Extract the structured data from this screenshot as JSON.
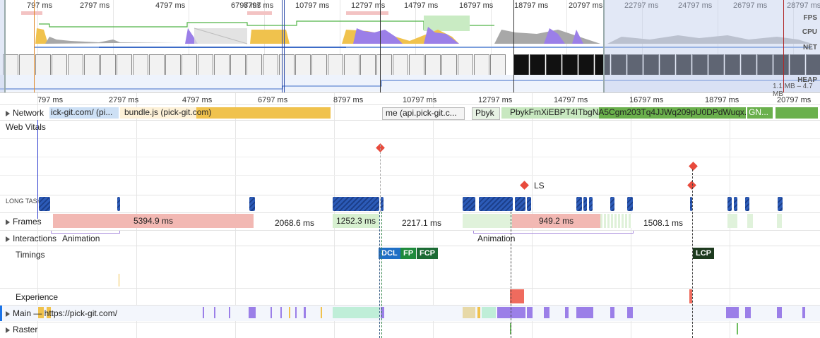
{
  "overview": {
    "ticks": [
      "797 ms",
      "2797 ms",
      "4797 ms",
      "6797 ms",
      "8797 ms",
      "10797 ms",
      "12797 ms",
      "14797 ms",
      "16797 ms",
      "18797 ms",
      "20797 ms",
      "22797 ms",
      "24797 ms",
      "26797 ms",
      "28797 ms"
    ],
    "side_labels": {
      "fps": "FPS",
      "cpu": "CPU",
      "net": "NET",
      "heap": "HEAP"
    },
    "heap_range": "1.1 MB – 4.7 MB"
  },
  "main_ticks": [
    "797 ms",
    "2797 ms",
    "4797 ms",
    "6797 ms",
    "8797 ms",
    "10797 ms",
    "12797 ms",
    "14797 ms",
    "16797 ms",
    "18797 ms",
    "20797 ms"
  ],
  "network": {
    "label": "Network",
    "requests": [
      "ick-git.com/ (pi...",
      "bundle.js (pick-git.com)",
      "me (api.pick-git.c...",
      "Pbyk",
      "PbykFmXiEBPT4ITbgNA5Cgm203Tq4JJWq209pU0DPdWuqx...",
      "GN..."
    ]
  },
  "web_vitals": {
    "label": "Web Vitals",
    "ls_label": "LS"
  },
  "long_tasks": {
    "label": "LONG TASKS"
  },
  "frames": {
    "label": "Frames",
    "durations": [
      "5394.9 ms",
      "2068.6 ms",
      "1252.3 ms",
      "2217.1 ms",
      "949.2 ms",
      "1508.1 ms"
    ]
  },
  "interactions": {
    "label": "Interactions",
    "animation_labels": [
      "Animation",
      "Animation"
    ]
  },
  "timings": {
    "label": "Timings",
    "markers": [
      "DCL",
      "FP",
      "FCP",
      "LCP"
    ]
  },
  "experience": {
    "label": "Experience"
  },
  "main": {
    "label": "Main — https://pick-git.com/"
  },
  "raster": {
    "label": "Raster"
  },
  "colors": {
    "scripting": "#f0c24d",
    "rendering": "#9b7fe8",
    "painting": "#6dbd5e",
    "frames": "#f2b8b3",
    "long_task": "#2c5bb8",
    "dcl": "#1f6fc5",
    "fp": "#1e8a3c",
    "fcp": "#1b6b34",
    "lcp": "#1d3a1e",
    "layout_shift": "#e84a3c"
  }
}
